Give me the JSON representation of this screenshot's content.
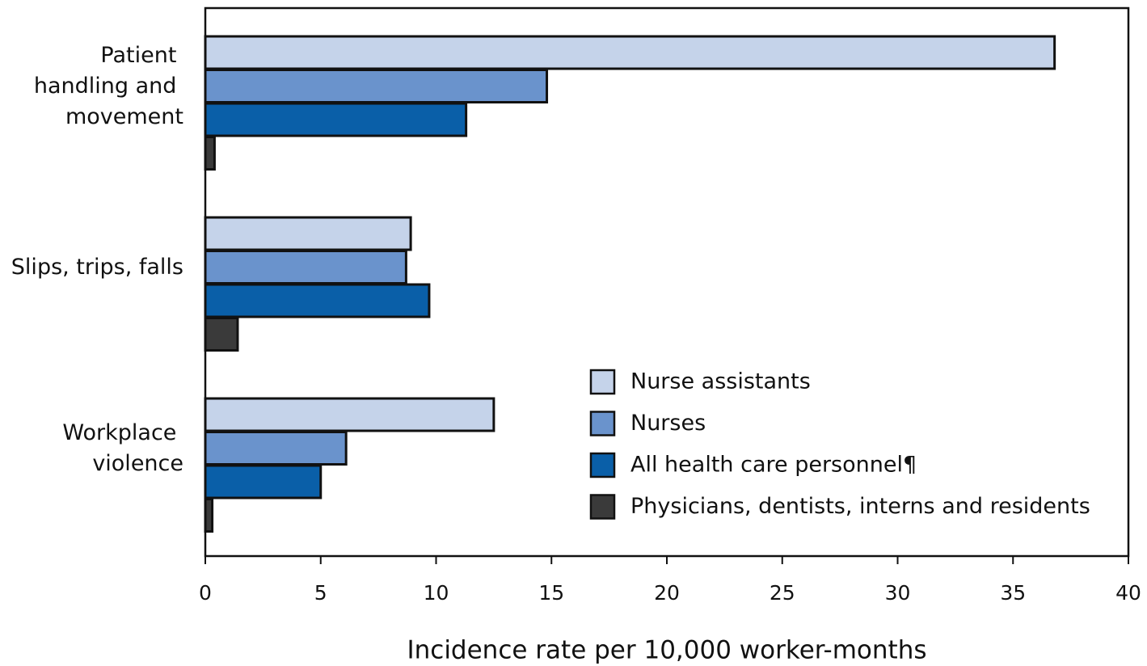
{
  "chart_data": {
    "type": "hbar",
    "categories": [
      "Patient\nhandling and\nmovement",
      "Slips, trips, falls",
      "Workplace\nviolence"
    ],
    "series": [
      {
        "name": "Nurse assistants",
        "color": "#c5d3ea",
        "values": [
          36.8,
          8.9,
          12.5
        ]
      },
      {
        "name": "Nurses",
        "color": "#6a93cc",
        "values": [
          14.8,
          8.7,
          6.1
        ]
      },
      {
        "name": "All health care personnel¶",
        "color": "#0a5fa8",
        "values": [
          11.3,
          9.7,
          5.0
        ]
      },
      {
        "name": "Physicians, dentists, interns and residents",
        "color": "#3a3a3a",
        "values": [
          0.4,
          1.4,
          0.3
        ]
      }
    ],
    "xlim": [
      0,
      40
    ],
    "xticks": [
      0,
      5,
      10,
      15,
      20,
      25,
      30,
      35,
      40
    ],
    "x_label": "Incidence rate per 10,000 worker-months",
    "legend": "lower right"
  }
}
